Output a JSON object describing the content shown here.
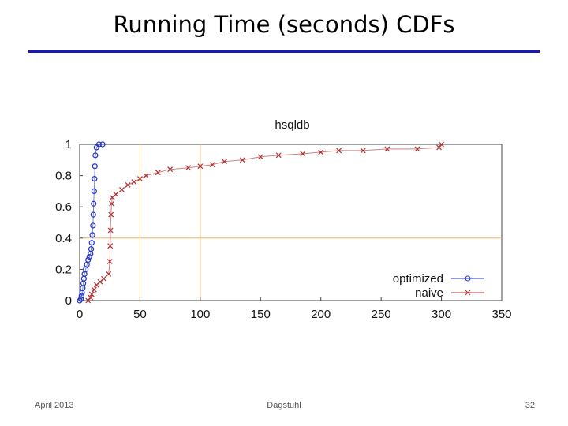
{
  "slide": {
    "title": "Running Time (seconds) CDFs",
    "footer_left": "April 2013",
    "footer_center": "Dagstuhl",
    "footer_right": "32"
  },
  "colors": {
    "title_rule": "#1a1ab0",
    "optimized": "#2233cc",
    "naive": "#b03030",
    "grid": "#e8b460"
  },
  "chart_data": {
    "type": "scatter",
    "title": "hsqldb",
    "xlabel": "",
    "ylabel": "",
    "xlim": [
      0,
      350
    ],
    "ylim": [
      0,
      1
    ],
    "x_ticks": [
      0,
      50,
      100,
      150,
      200,
      250,
      300,
      350
    ],
    "y_ticks": [
      0,
      0.2,
      0.4,
      0.6,
      0.8,
      1
    ],
    "y_tick_labels": [
      "0",
      "0.2",
      "0.4",
      "0.6",
      "0.8",
      "1"
    ],
    "grid": {
      "x": [
        50,
        100
      ],
      "y": [
        0.4
      ]
    },
    "legend_position": "bottom-right",
    "series": [
      {
        "name": "optimized",
        "marker": "circle",
        "points": [
          [
            0,
            0.0
          ],
          [
            1,
            0.01
          ],
          [
            1.5,
            0.03
          ],
          [
            2,
            0.05
          ],
          [
            2.5,
            0.08
          ],
          [
            3,
            0.11
          ],
          [
            3.5,
            0.14
          ],
          [
            4,
            0.17
          ],
          [
            5,
            0.2
          ],
          [
            6,
            0.23
          ],
          [
            7,
            0.26
          ],
          [
            8,
            0.28
          ],
          [
            9,
            0.3
          ],
          [
            9.5,
            0.33
          ],
          [
            10,
            0.37
          ],
          [
            10.5,
            0.42
          ],
          [
            11,
            0.48
          ],
          [
            11.3,
            0.55
          ],
          [
            11.6,
            0.62
          ],
          [
            12,
            0.7
          ],
          [
            12.3,
            0.78
          ],
          [
            12.6,
            0.86
          ],
          [
            13,
            0.93
          ],
          [
            14,
            0.98
          ],
          [
            16,
            1.0
          ],
          [
            19,
            1.0
          ]
        ]
      },
      {
        "name": "naive",
        "marker": "cross",
        "points": [
          [
            7,
            0.0
          ],
          [
            9,
            0.02
          ],
          [
            10,
            0.04
          ],
          [
            12,
            0.07
          ],
          [
            14,
            0.1
          ],
          [
            17,
            0.12
          ],
          [
            20,
            0.14
          ],
          [
            24,
            0.17
          ],
          [
            25,
            0.25
          ],
          [
            25.3,
            0.35
          ],
          [
            25.6,
            0.45
          ],
          [
            26,
            0.55
          ],
          [
            26.5,
            0.62
          ],
          [
            27,
            0.66
          ],
          [
            30,
            0.68
          ],
          [
            35,
            0.71
          ],
          [
            40,
            0.74
          ],
          [
            45,
            0.76
          ],
          [
            50,
            0.78
          ],
          [
            55,
            0.8
          ],
          [
            65,
            0.82
          ],
          [
            75,
            0.84
          ],
          [
            90,
            0.85
          ],
          [
            100,
            0.86
          ],
          [
            110,
            0.87
          ],
          [
            120,
            0.89
          ],
          [
            135,
            0.9
          ],
          [
            150,
            0.92
          ],
          [
            165,
            0.93
          ],
          [
            185,
            0.94
          ],
          [
            200,
            0.95
          ],
          [
            215,
            0.96
          ],
          [
            235,
            0.96
          ],
          [
            255,
            0.97
          ],
          [
            280,
            0.97
          ],
          [
            298,
            0.98
          ],
          [
            300,
            1.0
          ]
        ]
      }
    ]
  }
}
